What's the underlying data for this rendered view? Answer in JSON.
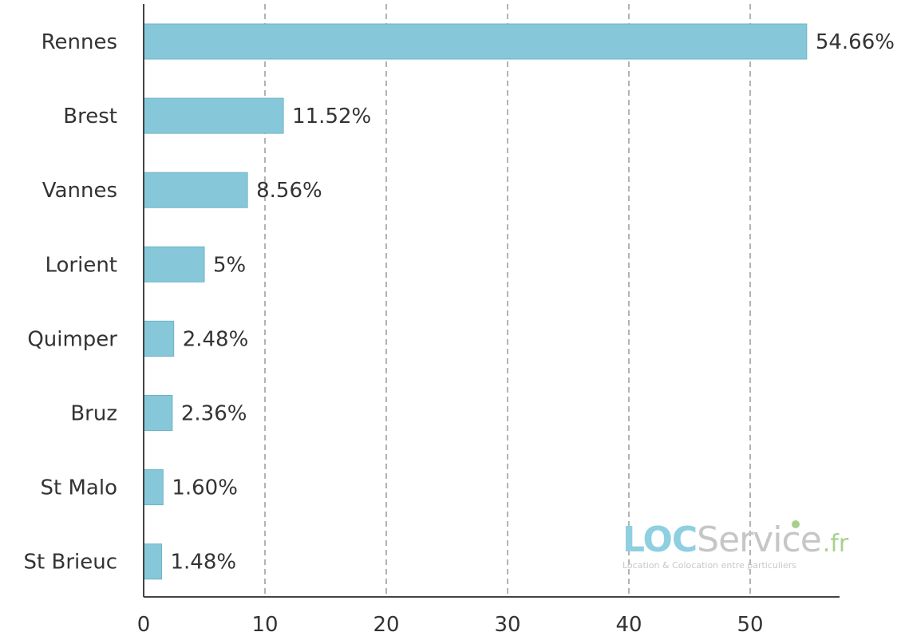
{
  "chart_data": {
    "type": "bar",
    "orientation": "horizontal",
    "categories": [
      "Rennes",
      "Brest",
      "Vannes",
      "Lorient",
      "Quimper",
      "Bruz",
      "St Malo",
      "St Brieuc"
    ],
    "values": [
      54.66,
      11.52,
      8.56,
      5,
      2.48,
      2.36,
      1.6,
      1.48
    ],
    "data_labels": [
      "54.66%",
      "11.52%",
      "8.56%",
      "5%",
      "2.48%",
      "2.36%",
      "1.60%",
      "1.48%"
    ],
    "xlim": [
      0,
      55
    ],
    "x_ticks": [
      0,
      10,
      20,
      30,
      40,
      50
    ],
    "x_tick_labels": [
      "0",
      "10",
      "20",
      "30",
      "40",
      "50"
    ],
    "grid": "vertical dashed",
    "bar_color": "#86c8da",
    "title": "",
    "xlabel": "",
    "ylabel": ""
  },
  "watermark": {
    "brand_loc": "LOC",
    "brand_service": "Service",
    "brand_tld": ".fr",
    "tagline": "Location & Colocation entre particuliers",
    "loc_color": "#8ecfe0",
    "service_color": "#c6c6c6",
    "tld_color": "#a8d08d"
  }
}
